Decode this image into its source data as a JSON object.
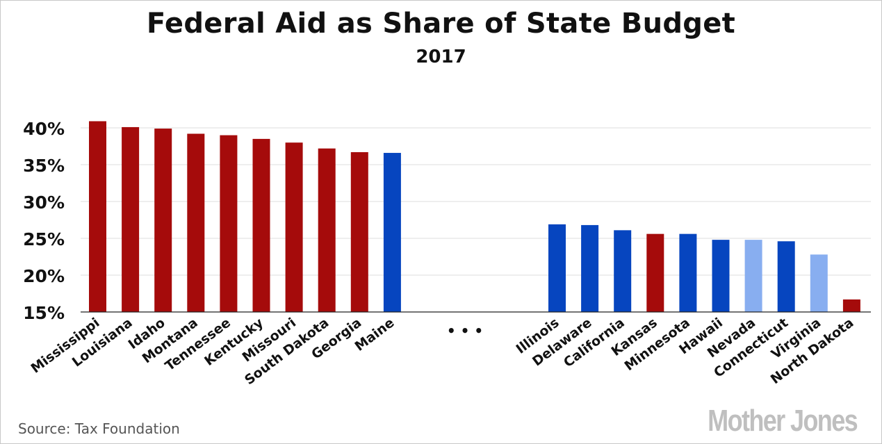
{
  "chart_data": {
    "type": "bar",
    "title": "Federal Aid as Share of State Budget",
    "subtitle": "2017",
    "ylim": [
      15,
      42
    ],
    "yticks": [
      15,
      20,
      25,
      30,
      35,
      40
    ],
    "ytick_labels": [
      "15%",
      "20%",
      "25%",
      "30%",
      "35%",
      "40%"
    ],
    "grid": true,
    "ellipsis": "• • •",
    "colors": {
      "Republican": "#a50b0b",
      "Democratic": "#0645bf",
      "Light Democratic": "#88aef0"
    },
    "groups": [
      {
        "categories": [
          "Mississippi",
          "Louisiana",
          "Idaho",
          "Montana",
          "Tennessee",
          "Kentucky",
          "Missouri",
          "South Dakota",
          "Georgia",
          "Maine"
        ],
        "values": [
          40.9,
          40.1,
          39.9,
          39.2,
          39.0,
          38.5,
          38.0,
          37.2,
          36.7,
          36.6
        ],
        "party": [
          "Republican",
          "Republican",
          "Republican",
          "Republican",
          "Republican",
          "Republican",
          "Republican",
          "Republican",
          "Republican",
          "Democratic"
        ]
      },
      {
        "categories": [
          "Illinois",
          "Delaware",
          "California",
          "Kansas",
          "Minnesota",
          "Hawaii",
          "Nevada",
          "Connecticut",
          "Virginia",
          "North Dakota"
        ],
        "values": [
          26.9,
          26.8,
          26.1,
          25.6,
          25.6,
          24.8,
          24.8,
          24.6,
          22.8,
          16.7
        ],
        "party": [
          "Democratic",
          "Democratic",
          "Democratic",
          "Republican",
          "Democratic",
          "Democratic",
          "Light Democratic",
          "Democratic",
          "Light Democratic",
          "Republican"
        ]
      }
    ]
  },
  "footer": {
    "source": "Source: Tax Foundation",
    "watermark": "Mother Jones"
  }
}
